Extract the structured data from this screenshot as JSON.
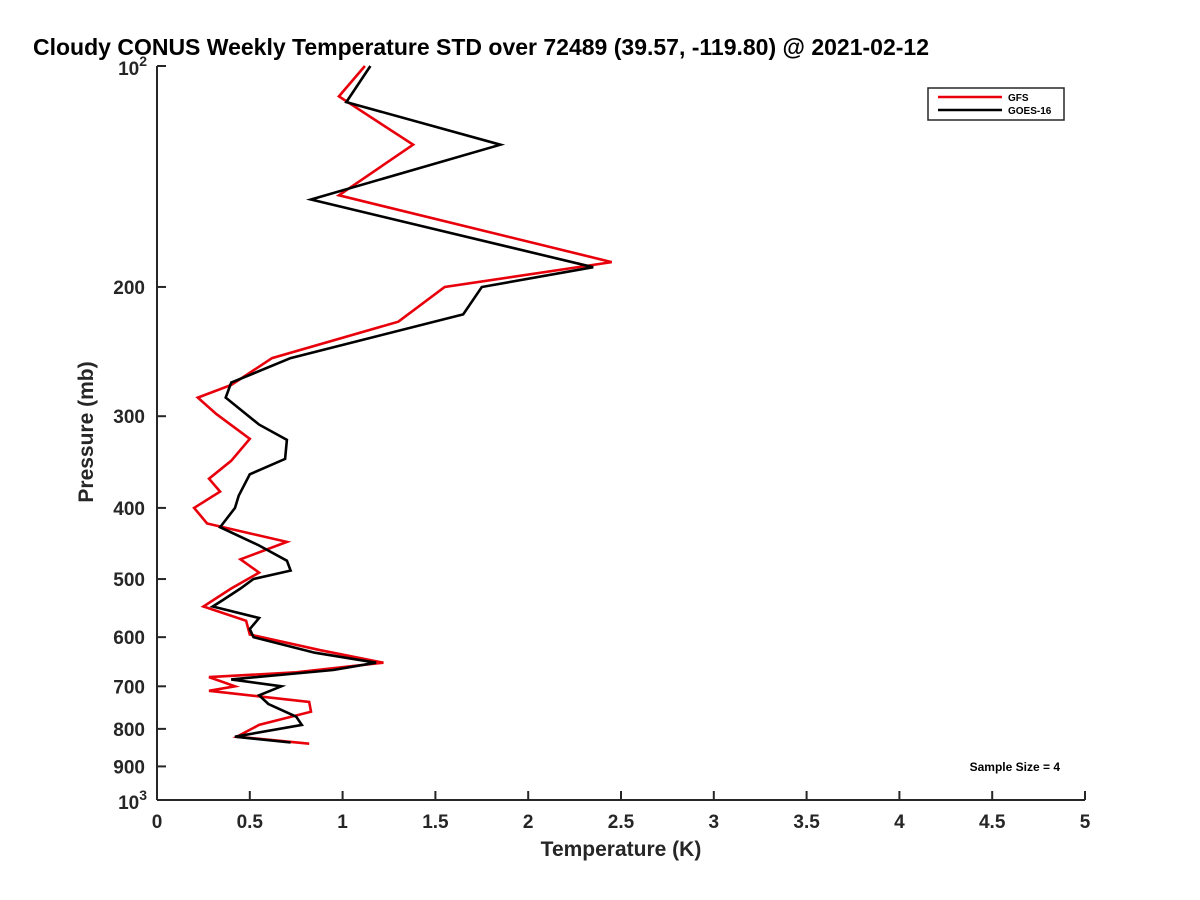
{
  "chart_data": {
    "type": "line",
    "title": "Cloudy CONUS Weekly Temperature STD over 72489 (39.57, -119.80) @ 2021-02-12",
    "xlabel": "Temperature (K)",
    "ylabel": "Pressure (mb)",
    "xlim": [
      0,
      5
    ],
    "ylim": [
      100,
      1000
    ],
    "y_scale": "log",
    "y_reversed": true,
    "xticks": [
      {
        "value": 0,
        "label": "0"
      },
      {
        "value": 0.5,
        "label": "0.5"
      },
      {
        "value": 1,
        "label": "1"
      },
      {
        "value": 1.5,
        "label": "1.5"
      },
      {
        "value": 2,
        "label": "2"
      },
      {
        "value": 2.5,
        "label": "2.5"
      },
      {
        "value": 3,
        "label": "3"
      },
      {
        "value": 3.5,
        "label": "3.5"
      },
      {
        "value": 4,
        "label": "4"
      },
      {
        "value": 4.5,
        "label": "4.5"
      },
      {
        "value": 5,
        "label": "5"
      }
    ],
    "yticks": [
      {
        "value": 100,
        "base": "10",
        "exp": "2"
      },
      {
        "value": 200,
        "label": "200"
      },
      {
        "value": 300,
        "label": "300"
      },
      {
        "value": 400,
        "label": "400"
      },
      {
        "value": 500,
        "label": "500"
      },
      {
        "value": 600,
        "label": "600"
      },
      {
        "value": 700,
        "label": "700"
      },
      {
        "value": 800,
        "label": "800"
      },
      {
        "value": 900,
        "label": "900"
      },
      {
        "value": 1000,
        "base": "10",
        "exp": "3"
      }
    ],
    "legend_position": "top-right",
    "grid": false,
    "annotation": "Sample Size = 4",
    "series": [
      {
        "name": "GFS",
        "color": "#e8000b",
        "points": [
          [
            1.12,
            100
          ],
          [
            0.98,
            110
          ],
          [
            1.38,
            128
          ],
          [
            0.98,
            150
          ],
          [
            2.45,
            185
          ],
          [
            1.55,
            200
          ],
          [
            1.3,
            223
          ],
          [
            0.62,
            250
          ],
          [
            0.4,
            272
          ],
          [
            0.22,
            283
          ],
          [
            0.32,
            298
          ],
          [
            0.5,
            322
          ],
          [
            0.4,
            345
          ],
          [
            0.28,
            365
          ],
          [
            0.34,
            380
          ],
          [
            0.2,
            400
          ],
          [
            0.27,
            420
          ],
          [
            0.7,
            445
          ],
          [
            0.45,
            470
          ],
          [
            0.55,
            490
          ],
          [
            0.4,
            515
          ],
          [
            0.25,
            545
          ],
          [
            0.48,
            570
          ],
          [
            0.5,
            595
          ],
          [
            0.88,
            625
          ],
          [
            1.22,
            650
          ],
          [
            0.75,
            670
          ],
          [
            0.28,
            680
          ],
          [
            0.42,
            700
          ],
          [
            0.28,
            710
          ],
          [
            0.82,
            735
          ],
          [
            0.83,
            758
          ],
          [
            0.55,
            790
          ],
          [
            0.43,
            820
          ],
          [
            0.82,
            838
          ]
        ]
      },
      {
        "name": "GOES-16",
        "color": "#000000",
        "points": [
          [
            1.15,
            100
          ],
          [
            1.02,
            112
          ],
          [
            1.85,
            128
          ],
          [
            0.83,
            152
          ],
          [
            2.35,
            188
          ],
          [
            1.75,
            200
          ],
          [
            1.65,
            218
          ],
          [
            0.72,
            250
          ],
          [
            0.4,
            270
          ],
          [
            0.37,
            283
          ],
          [
            0.55,
            308
          ],
          [
            0.7,
            323
          ],
          [
            0.69,
            343
          ],
          [
            0.5,
            360
          ],
          [
            0.44,
            385
          ],
          [
            0.42,
            400
          ],
          [
            0.34,
            425
          ],
          [
            0.55,
            450
          ],
          [
            0.7,
            472
          ],
          [
            0.72,
            487
          ],
          [
            0.52,
            500
          ],
          [
            0.45,
            515
          ],
          [
            0.35,
            535
          ],
          [
            0.3,
            545
          ],
          [
            0.55,
            565
          ],
          [
            0.5,
            585
          ],
          [
            0.52,
            600
          ],
          [
            0.85,
            630
          ],
          [
            1.18,
            650
          ],
          [
            0.95,
            665
          ],
          [
            0.4,
            685
          ],
          [
            0.67,
            700
          ],
          [
            0.55,
            720
          ],
          [
            0.6,
            740
          ],
          [
            0.75,
            770
          ],
          [
            0.78,
            790
          ],
          [
            0.42,
            820
          ],
          [
            0.72,
            835
          ]
        ]
      }
    ]
  }
}
